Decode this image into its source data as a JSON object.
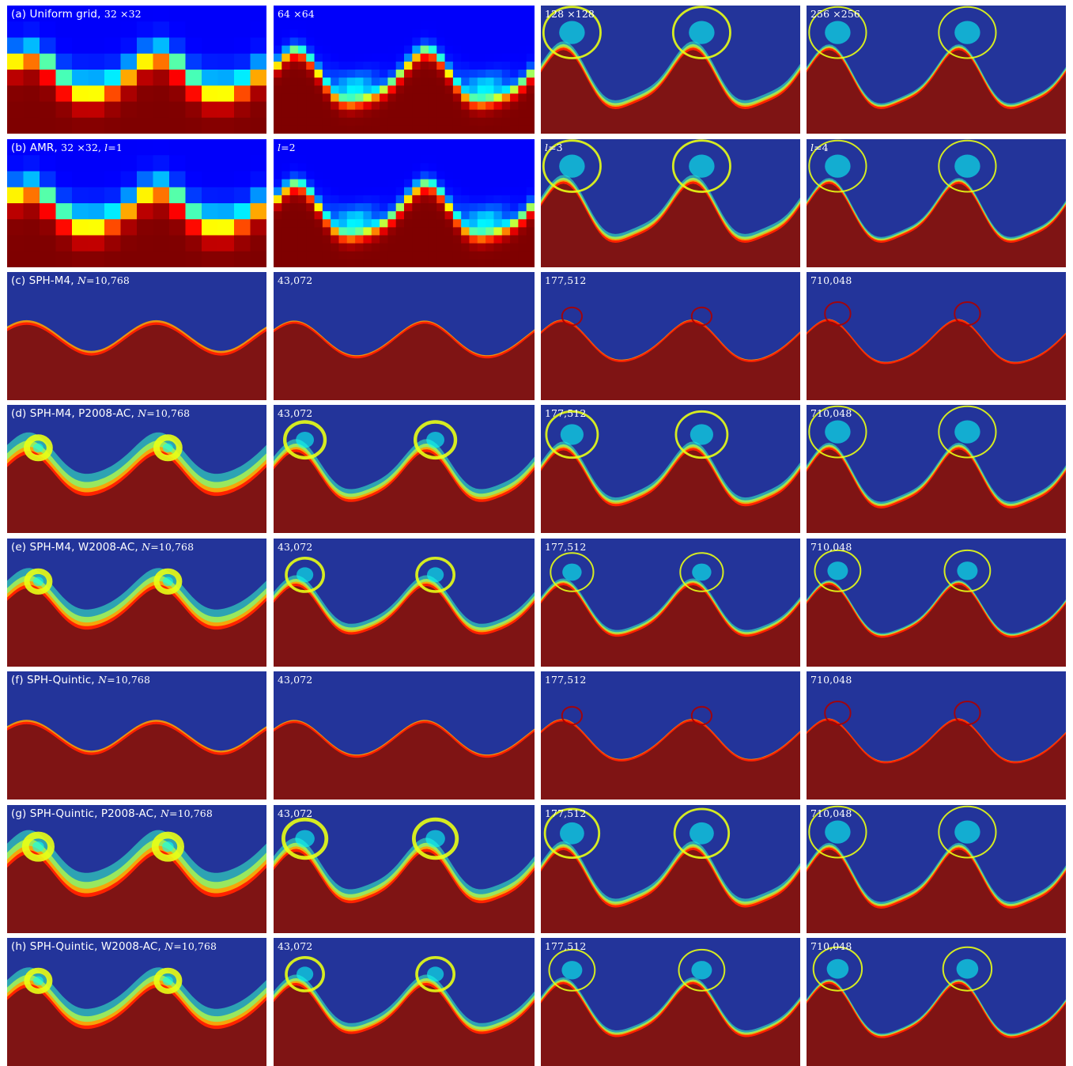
{
  "rows": [
    {
      "id": "a",
      "kind": "grid",
      "labels": [
        {
          "prefix": "(a) Uniform grid, ",
          "sub": "32 ×32"
        },
        {
          "text": "64 ×64"
        },
        {
          "text": "128 ×128"
        },
        {
          "text": "256 ×256"
        }
      ],
      "cells": [
        16,
        32,
        0,
        0
      ],
      "roll": [
        0.3,
        0.75,
        1.0,
        1.0
      ],
      "spread": [
        1.0,
        0.55,
        0.35,
        0.2
      ]
    },
    {
      "id": "b",
      "kind": "grid",
      "labels": [
        {
          "prefix": "(b) AMR, ",
          "sub": "32 ×32, ",
          "ital": "l",
          "suffix": "=1"
        },
        {
          "ital": "l",
          "suffix": "=2"
        },
        {
          "ital": "l",
          "suffix": "=3"
        },
        {
          "ital": "l",
          "suffix": "=4"
        }
      ],
      "cells": [
        16,
        32,
        0,
        0
      ],
      "roll": [
        0.3,
        0.75,
        1.0,
        1.0
      ],
      "spread": [
        1.0,
        0.55,
        0.35,
        0.2
      ]
    },
    {
      "id": "c",
      "kind": "sph",
      "labels": [
        {
          "prefix": "(c) SPH-M4, ",
          "ital": "N",
          "suffix": "=10,768"
        },
        {
          "text": "43,072"
        },
        {
          "text": "177,512"
        },
        {
          "text": "710,048"
        }
      ],
      "roll": [
        0.0,
        0.15,
        0.35,
        0.45
      ],
      "spread": [
        0.5,
        0.25,
        0.15,
        0.1
      ]
    },
    {
      "id": "d",
      "kind": "ac",
      "labels": [
        {
          "prefix": "(d) SPH-M4, P2008-AC, ",
          "ital": "N",
          "suffix": "=10,768"
        },
        {
          "text": "43,072"
        },
        {
          "text": "177,512"
        },
        {
          "text": "710,048"
        }
      ],
      "roll": [
        0.4,
        0.7,
        0.9,
        1.0
      ],
      "spread": [
        1.0,
        0.55,
        0.35,
        0.25
      ]
    },
    {
      "id": "e",
      "kind": "ac",
      "labels": [
        {
          "prefix": "(e) SPH-M4, W2008-AC, ",
          "ital": "N",
          "suffix": "=10,768"
        },
        {
          "text": "43,072"
        },
        {
          "text": "177,512"
        },
        {
          "text": "710,048"
        }
      ],
      "roll": [
        0.4,
        0.65,
        0.75,
        0.8
      ],
      "spread": [
        0.9,
        0.45,
        0.25,
        0.15
      ]
    },
    {
      "id": "f",
      "kind": "sph",
      "labels": [
        {
          "prefix": "(f) SPH-Quintic, ",
          "ital": "N",
          "suffix": "=10,768"
        },
        {
          "text": "43,072"
        },
        {
          "text": "177,512"
        },
        {
          "text": "710,048"
        }
      ],
      "roll": [
        0.0,
        0.15,
        0.35,
        0.45
      ],
      "spread": [
        0.45,
        0.25,
        0.15,
        0.1
      ]
    },
    {
      "id": "g",
      "kind": "ac",
      "labels": [
        {
          "prefix": "(g) SPH-Quintic, P2008-AC, ",
          "ital": "N",
          "suffix": "=10,768"
        },
        {
          "text": "43,072"
        },
        {
          "text": "177,512"
        },
        {
          "text": "710,048"
        }
      ],
      "roll": [
        0.45,
        0.75,
        0.95,
        1.0
      ],
      "spread": [
        1.1,
        0.6,
        0.35,
        0.25
      ]
    },
    {
      "id": "h",
      "kind": "ac",
      "labels": [
        {
          "prefix": "(h) SPH-Quintic, W2008-AC, ",
          "ital": "N",
          "suffix": "=10,768"
        },
        {
          "text": "43,072"
        },
        {
          "text": "177,512"
        },
        {
          "text": "710,048"
        }
      ],
      "roll": [
        0.4,
        0.65,
        0.8,
        0.85
      ],
      "spread": [
        0.9,
        0.45,
        0.25,
        0.15
      ]
    }
  ],
  "colors": {
    "background": "#ffffff",
    "upper_fluid": "#23349a",
    "lower_fluid": "#7f1414",
    "colormap": [
      "#00007f",
      "#0000ff",
      "#007fff",
      "#00ffff",
      "#7fff7f",
      "#ffff00",
      "#ff7f00",
      "#ff0000",
      "#7f0000"
    ],
    "label_text": "#ffffff"
  }
}
